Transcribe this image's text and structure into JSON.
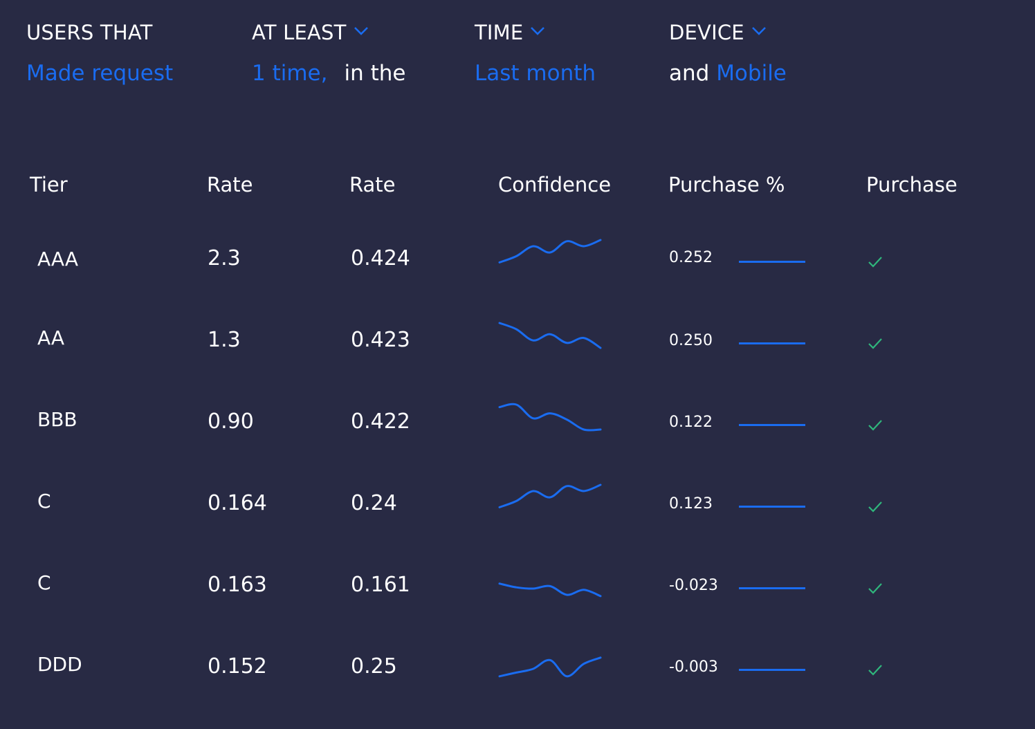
{
  "filters": {
    "users_that": {
      "label": "USERS THAT",
      "value": "Made request"
    },
    "at_least": {
      "label": "AT LEAST",
      "value": "1 time,",
      "suffix": "in the"
    },
    "time": {
      "label": "TIME",
      "value": "Last month"
    },
    "device": {
      "label": "DEVICE",
      "prefix": "and",
      "value": "Mobile"
    }
  },
  "table": {
    "headers": [
      "Tier",
      "Rate",
      "Rate",
      "Confidence",
      "Purchase %",
      "Purchase"
    ],
    "rows": [
      {
        "tier": "AAA",
        "rate1": "2.3",
        "rate2": "0.424",
        "purchase_pct": "0.252",
        "purchase": true,
        "confidence_trend": [
          0.1,
          0.35,
          0.75,
          0.5,
          0.95,
          0.75,
          1.0
        ]
      },
      {
        "tier": "AA",
        "rate1": "1.3",
        "rate2": "0.423",
        "purchase_pct": "0.250",
        "purchase": true,
        "confidence_trend": [
          1.0,
          0.75,
          0.3,
          0.55,
          0.2,
          0.4,
          0.0
        ]
      },
      {
        "tier": "BBB",
        "rate1": "0.90",
        "rate2": "0.422",
        "purchase_pct": "0.122",
        "purchase": true,
        "confidence_trend": [
          0.9,
          1.0,
          0.45,
          0.65,
          0.4,
          0.0,
          0.0
        ]
      },
      {
        "tier": "C",
        "rate1": "0.164",
        "rate2": "0.24",
        "purchase_pct": "0.123",
        "purchase": true,
        "confidence_trend": [
          0.1,
          0.35,
          0.75,
          0.5,
          0.95,
          0.75,
          1.0
        ]
      },
      {
        "tier": "C",
        "rate1": "0.163",
        "rate2": "0.161",
        "purchase_pct": "-0.023",
        "purchase": true,
        "confidence_trend": [
          0.7,
          0.55,
          0.5,
          0.6,
          0.25,
          0.45,
          0.2
        ]
      },
      {
        "tier": "DDD",
        "rate1": "0.152",
        "rate2": "0.25",
        "purchase_pct": "-0.003",
        "purchase": true,
        "confidence_trend": [
          0.2,
          0.35,
          0.5,
          0.85,
          0.2,
          0.7,
          0.95
        ]
      }
    ]
  },
  "colors": {
    "background": "#282a44",
    "accent": "#1a6cf0",
    "check": "#2fb67c",
    "text": "#ffffff"
  },
  "icons": {
    "dropdown": "chevron-down-icon",
    "check": "check-icon"
  }
}
